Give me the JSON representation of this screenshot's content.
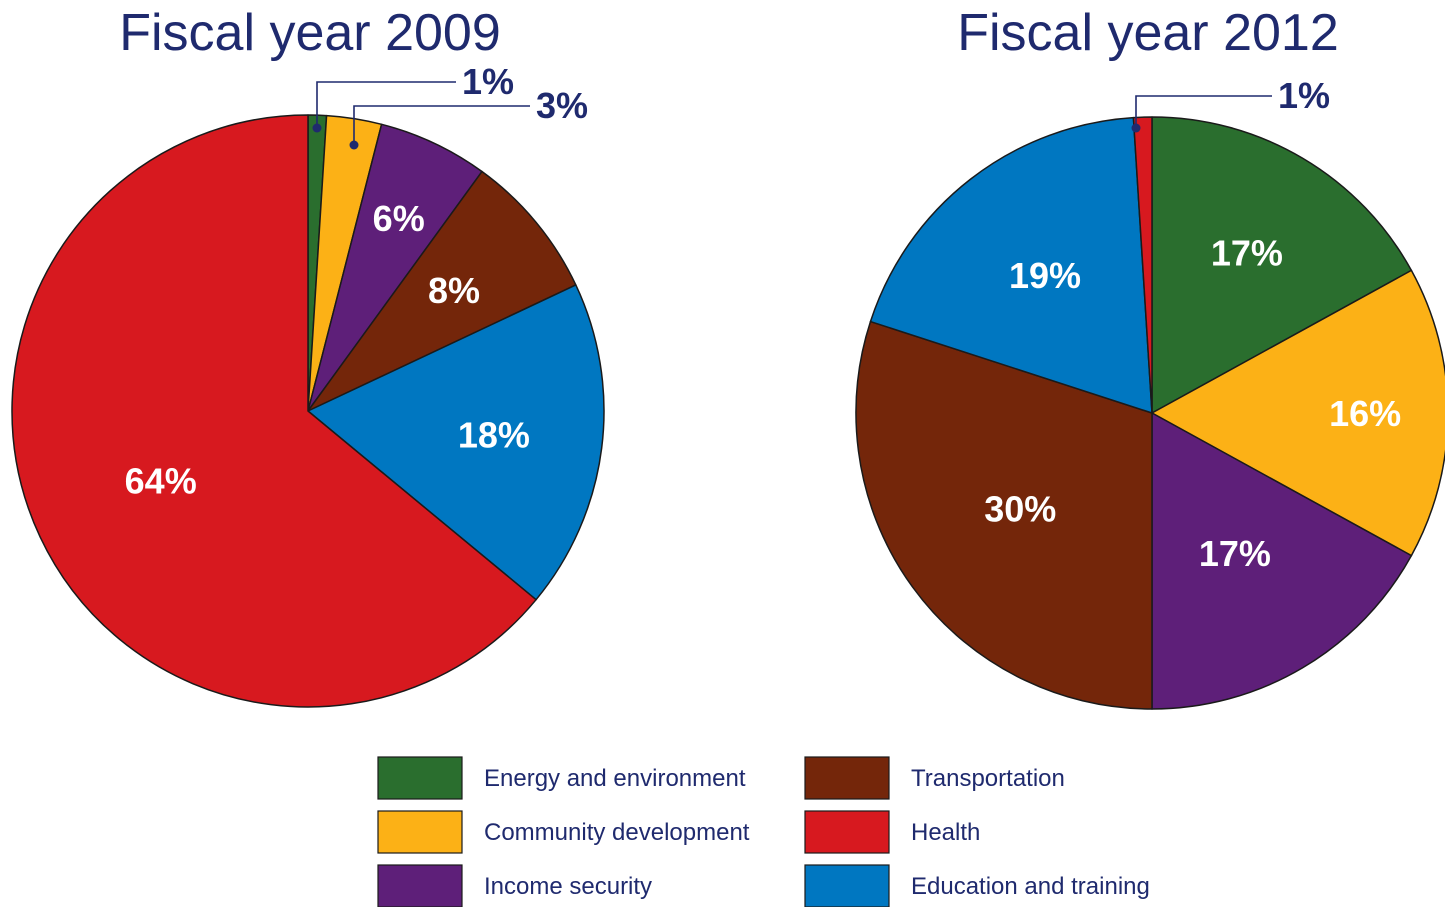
{
  "legend": [
    {
      "name": "Energy and environment",
      "color": "#2a6e2e"
    },
    {
      "name": "Community development",
      "color": "#fcb116"
    },
    {
      "name": "Income security",
      "color": "#5e1f79"
    },
    {
      "name": "Transportation",
      "color": "#74260a"
    },
    {
      "name": "Health",
      "color": "#d7191f"
    },
    {
      "name": "Education and training",
      "color": "#0077c1"
    }
  ],
  "chart_data": [
    {
      "type": "pie",
      "title": "Fiscal year 2009",
      "categories": [
        "Energy and environment",
        "Community development",
        "Income security",
        "Transportation",
        "Education and training",
        "Health"
      ],
      "values": [
        1,
        3,
        6,
        8,
        18,
        64
      ],
      "labels": [
        "1%",
        "3%",
        "6%",
        "8%",
        "18%",
        "64%"
      ],
      "colors": [
        "#2a6e2e",
        "#fcb116",
        "#5e1f79",
        "#74260a",
        "#0077c1",
        "#d7191f"
      ],
      "start_angle_deg": 0,
      "direction": "clockwise",
      "legend_position": "bottom"
    },
    {
      "type": "pie",
      "title": "Fiscal year 2012",
      "categories": [
        "Energy and environment",
        "Community development",
        "Income security",
        "Transportation",
        "Education and training",
        "Health"
      ],
      "values": [
        17,
        16,
        17,
        30,
        19,
        1
      ],
      "labels": [
        "17%",
        "16%",
        "17%",
        "30%",
        "19%",
        "1%"
      ],
      "colors": [
        "#2a6e2e",
        "#fcb116",
        "#5e1f79",
        "#74260a",
        "#0077c1",
        "#d7191f"
      ],
      "start_angle_deg": 0,
      "direction": "clockwise",
      "legend_position": "bottom"
    }
  ]
}
